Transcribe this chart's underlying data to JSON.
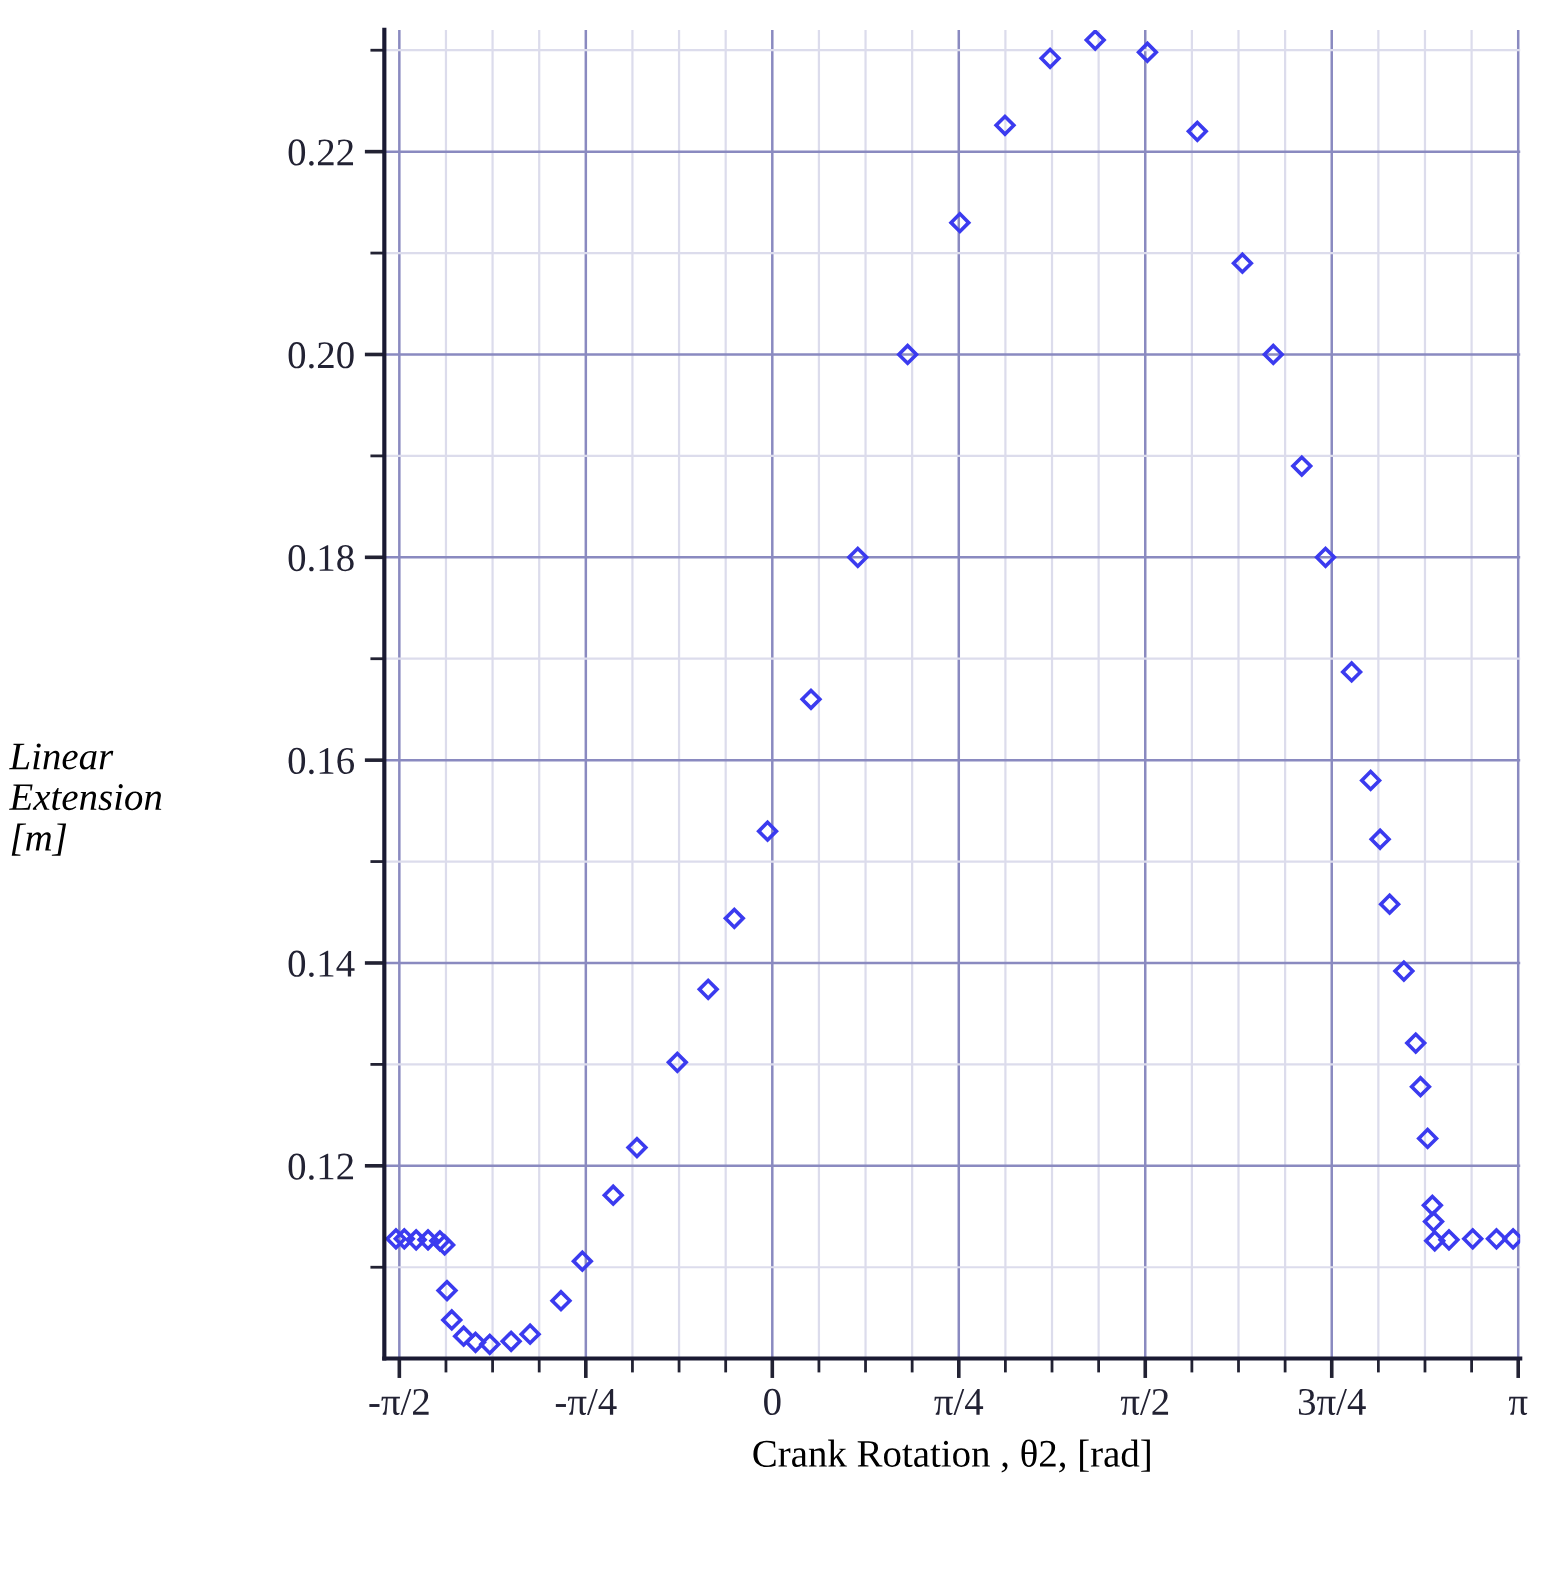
{
  "chart_data": {
    "type": "scatter",
    "xlabel": "Crank Rotation , θ2, [rad]",
    "ylabel": "Linear\nExtension\n[m]",
    "marker": "diamond",
    "grid": true,
    "xlim": [
      -1.634,
      3.15
    ],
    "ylim": [
      0.101,
      0.232
    ],
    "xticks": [
      {
        "value": -1.5708,
        "label": "-π/2"
      },
      {
        "value": -0.7854,
        "label": "-π/4"
      },
      0,
      {
        "value": 0.7854,
        "label": "π/4"
      },
      {
        "value": 1.5708,
        "label": "π/2"
      },
      {
        "value": 2.3562,
        "label": "3π/4"
      },
      {
        "value": 3.1416,
        "label": "π"
      }
    ],
    "yticks": [
      {
        "value": 0.12,
        "label": "0.12"
      },
      {
        "value": 0.14,
        "label": "0.14"
      },
      {
        "value": 0.16,
        "label": "0.16"
      },
      {
        "value": 0.18,
        "label": "0.18"
      },
      {
        "value": 0.2,
        "label": "0.20"
      },
      {
        "value": 0.22,
        "label": "0.22"
      }
    ],
    "series": [
      {
        "color": "#3b3bef",
        "x": [
          -1.585,
          -1.55,
          -1.5,
          -1.45,
          -1.4,
          -1.38,
          -1.37,
          -1.35,
          -1.3,
          -1.25,
          -1.19,
          -1.1,
          -1.02,
          -0.89,
          -0.8,
          -0.67,
          -0.57,
          -0.4,
          -0.27,
          -0.16,
          -0.02,
          0.163,
          0.36,
          0.57,
          0.79,
          0.98,
          1.17,
          1.36,
          1.58,
          1.79,
          1.98,
          2.11,
          2.23,
          2.33,
          2.44,
          2.52,
          2.56,
          2.6,
          2.66,
          2.71,
          2.73,
          2.76,
          2.78,
          2.785,
          2.79,
          2.85,
          2.95,
          3.05,
          3.12
        ],
        "values": [
          0.1128,
          0.1128,
          0.1127,
          0.1127,
          0.1126,
          0.1122,
          0.1077,
          0.1048,
          0.1032,
          0.1026,
          0.1024,
          0.1027,
          0.1034,
          0.1067,
          0.1106,
          0.1171,
          0.1218,
          0.1302,
          0.1374,
          0.1444,
          0.153,
          0.166,
          0.18,
          0.2,
          0.213,
          0.2226,
          0.2292,
          0.231,
          0.2298,
          0.222,
          0.209,
          0.2,
          0.189,
          0.18,
          0.1687,
          0.158,
          0.1522,
          0.1458,
          0.1392,
          0.1321,
          0.1278,
          0.1227,
          0.1161,
          0.1145,
          0.1126,
          0.1127,
          0.1128,
          0.1128,
          0.1128
        ]
      }
    ]
  }
}
